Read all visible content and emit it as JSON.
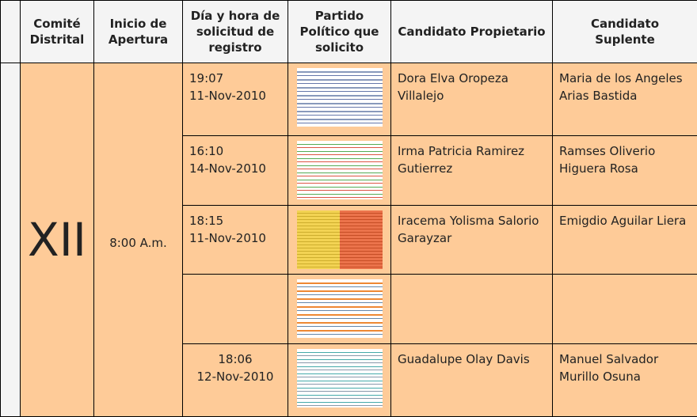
{
  "table": {
    "headers": [
      "Comité Distrital",
      "Inicio de Apertura",
      "Día y hora de solicitud de registro",
      "Partido Político que solicito",
      "Candidato Propietario",
      "Candidato Suplente"
    ],
    "comite": "XII",
    "inicio": "8:00 A.m.",
    "rows": [
      {
        "time": "19:07",
        "date": "11-Nov-2010",
        "propietario": "Dora Elva Oropeza Villalejo",
        "suplente": "Maria de los Angeles Arias Bastida"
      },
      {
        "time": "16:10",
        "date": "14-Nov-2010",
        "propietario": "Irma Patricia Ramirez Gutierrez",
        "suplente": "Ramses Oliverio Higuera Rosa"
      },
      {
        "time": "18:15",
        "date": "11-Nov-2010",
        "propietario": "Iracema Yolisma Salorio Garayzar",
        "suplente": "Emigdio Aguilar Liera"
      },
      {},
      {
        "time": "18:06",
        "date": "12-Nov-2010",
        "propietario": "Guadalupe Olay Davis",
        "suplente": "Manuel Salvador Murillo Osuna"
      }
    ]
  }
}
